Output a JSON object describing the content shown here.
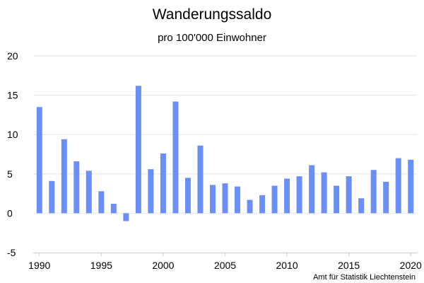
{
  "chart_data": {
    "type": "bar",
    "title": "Wanderungssaldo",
    "subtitle": "pro 100'000 Einwohner",
    "xlabel": "",
    "ylabel": "",
    "ylim": [
      -5,
      20
    ],
    "yticks": [
      -5,
      0,
      5,
      10,
      15,
      20
    ],
    "xticks": [
      1990,
      1995,
      2000,
      2005,
      2010,
      2015,
      2020
    ],
    "xlim": [
      1989.5,
      2020.5
    ],
    "grid": true,
    "legend": "none",
    "bar_color": "#6b8ff7",
    "x": [
      1990,
      1991,
      1992,
      1993,
      1994,
      1995,
      1996,
      1997,
      1998,
      1999,
      2000,
      2001,
      2002,
      2003,
      2004,
      2005,
      2006,
      2007,
      2008,
      2009,
      2010,
      2011,
      2012,
      2013,
      2014,
      2015,
      2016,
      2017,
      2018,
      2019,
      2020
    ],
    "values": [
      13.5,
      4.1,
      9.4,
      6.6,
      5.4,
      2.8,
      1.2,
      -1.0,
      16.2,
      5.6,
      7.6,
      14.2,
      4.5,
      8.6,
      3.6,
      3.8,
      3.4,
      1.7,
      2.3,
      3.5,
      4.4,
      4.7,
      6.1,
      5.2,
      3.5,
      4.7,
      1.9,
      5.5,
      4.0,
      7.0,
      6.8
    ],
    "source": "Amt für Statistik Liechtenstein"
  }
}
